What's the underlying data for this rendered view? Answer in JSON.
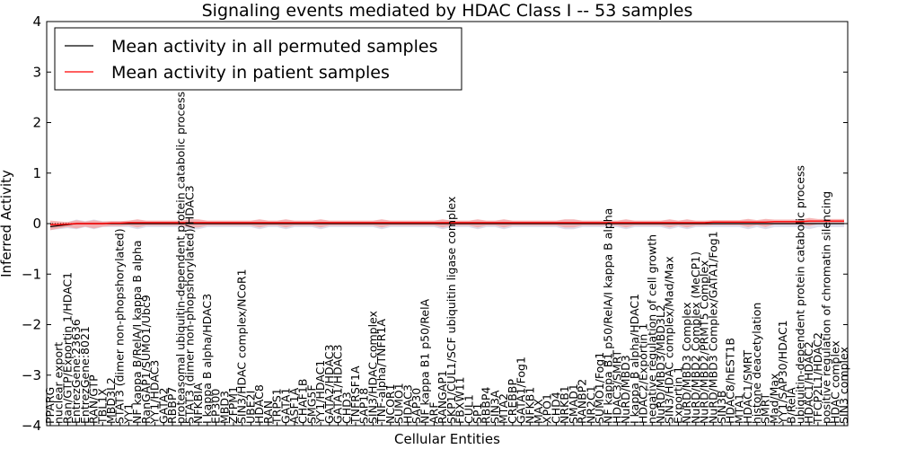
{
  "chart_data": {
    "type": "line",
    "title": "Signaling events mediated by HDAC Class I -- 53 samples",
    "xlabel": "Cellular Entities",
    "ylabel": "Inferred Activity",
    "ylim": [
      -4,
      4
    ],
    "yticks": [
      "−4",
      "−3",
      "−2",
      "−1",
      "0",
      "1",
      "2",
      "3",
      "4"
    ],
    "ytick_values": [
      -4,
      -3,
      -2,
      -1,
      0,
      1,
      2,
      3,
      4
    ],
    "legend": {
      "placement": "top-left",
      "entries": [
        {
          "label": "Mean activity in all permuted samples",
          "color": "#000000"
        },
        {
          "label": "Mean activity in patient samples",
          "color": "#ff0000"
        }
      ]
    },
    "colors": {
      "permuted": "#000000",
      "patient": "#ff0000",
      "patient_band": "#f4a0a0",
      "permuted_band": "#c8c8dc"
    },
    "categories": [
      "PPARG",
      "nuclear export",
      "Ran/GTP/Exportin 1/HDAC1",
      "EntrezGene:23636",
      "EntrezGene:8021",
      "RAN/GTP",
      "TBL1X",
      "MBD3L2",
      "STAT3 (dimer non-phopshorylated)",
      "YY1",
      "NF kappa B/RelA/I kappa B alpha",
      "RanGAP1/SUMO1/Ubc9",
      "YY1/HDAC3",
      "GATA2",
      "RBBP7",
      "proteasomal ubiquitin-dependent protein catabolic process",
      "STAT3 (dimer non-phopshorylated)/HDAC3",
      "NFKBIA",
      "I kappa B alpha/HDAC3",
      "EP300",
      "MBD3",
      "ZFPM1",
      "SIN3/HDAC complex/NCoR1",
      "UBE2I",
      "HDAC8",
      "RAN",
      "TRPS1",
      "GATA1",
      "ASF1A",
      "CHAF1B",
      "SMG5F",
      "YY1/HDAC1",
      "GATA2/HDAC3",
      "GATA1/HDAC3",
      "CHD3",
      "TNFRSF1A",
      "SAP18",
      "SIN3/HDAC complex",
      "TNF-alpha/TNFR1A",
      "NCOR1",
      "SUMO1",
      "HDAC3",
      "SAP30",
      "NF kappa B1 p50/RelA",
      "ARF",
      "RANGAP1",
      "SKP1/CUL1/SCF ubiquitin ligase complex",
      "FBXW11",
      "CUL1",
      "SP1",
      "RBBP4",
      "SIN3A",
      "MTA2",
      "CREBBP",
      "GATA1/Fog1",
      "NFKB1",
      "MAX",
      "XPO1",
      "CHD4",
      "NRKB1",
      "SMAD1",
      "RANBP2",
      "NR2C1",
      "SUMO1/Fog1",
      "NF kappa B1 p50/RelA/I kappa B alpha",
      "HDAC3/SMRT",
      "NuRD/MBD3",
      "I kappa B alpha/HDAC1",
      "HDAC2/Exportin 1",
      "negative regulation of cell growth",
      "NuRD/MBD3/MBD3L2",
      "SIN3/HDAC complex/Mad/Max",
      "Exportin 1",
      "NuRD/MBD3 Complex",
      "NuRD/MBD2 Complex (MeCP1)",
      "NuRD/MBD2/PRMT5 Complex",
      "NuRD/MBD3 Complex/GATA1/Fog1",
      "SIN3B",
      "HDAC8/hEST1B",
      "MTA1",
      "HDAC1/SMRT",
      "histone deacetylation",
      "SMRT",
      "Mad/Max",
      "YY1/SAP30/HDAC1",
      "B/RelA",
      "ubiquitin-dependent protein catabolic process",
      "HDAC1/HDAC2",
      "TFCP2L1/HDAC2",
      "positive regulation of chromatin silencing",
      "HDAC complex",
      "SIN3 complex"
    ],
    "series": [
      {
        "name": "Mean activity in all permuted samples",
        "values": [
          -0.06,
          -0.04,
          -0.02,
          0.0,
          0.0,
          0.0,
          0.0,
          0.0,
          0.0,
          0.0,
          0.0,
          0.0,
          0.0,
          0.0,
          0.0,
          0.0,
          0.0,
          0.0,
          0.0,
          0.0,
          0.0,
          0.0,
          0.0,
          0.0,
          0.0,
          0.0,
          0.0,
          0.0,
          0.0,
          0.0,
          0.0,
          0.0,
          0.0,
          0.0,
          0.0,
          0.0,
          0.0,
          0.0,
          0.0,
          0.0,
          0.0,
          0.0,
          0.0,
          0.0,
          0.0,
          0.0,
          0.0,
          0.0,
          0.0,
          0.0,
          0.0,
          0.0,
          0.0,
          0.0,
          0.0,
          0.0,
          0.0,
          0.0,
          0.0,
          0.0,
          0.0,
          0.0,
          0.0,
          0.0,
          0.0,
          0.0,
          0.0,
          0.0,
          0.0,
          0.0,
          0.0,
          0.0,
          0.0,
          0.0,
          0.0,
          0.0,
          0.0,
          0.0,
          0.0,
          0.0,
          0.0,
          0.0,
          0.0,
          0.0,
          0.0,
          0.0,
          0.0,
          0.0,
          0.0,
          0.0,
          0.0,
          0.0
        ]
      },
      {
        "name": "Mean activity in patient samples",
        "values": [
          -0.02,
          -0.02,
          -0.01,
          0.0,
          0.0,
          0.0,
          0.0,
          0.01,
          0.01,
          0.02,
          0.02,
          0.02,
          0.02,
          0.02,
          0.02,
          0.02,
          0.02,
          0.02,
          0.02,
          0.02,
          0.02,
          0.02,
          0.02,
          0.02,
          0.02,
          0.02,
          0.02,
          0.02,
          0.02,
          0.02,
          0.02,
          0.02,
          0.02,
          0.02,
          0.02,
          0.02,
          0.02,
          0.02,
          0.02,
          0.02,
          0.02,
          0.02,
          0.02,
          0.02,
          0.02,
          0.02,
          0.02,
          0.02,
          0.02,
          0.02,
          0.02,
          0.02,
          0.02,
          0.02,
          0.02,
          0.02,
          0.02,
          0.02,
          0.02,
          0.02,
          0.02,
          0.02,
          0.02,
          0.02,
          0.02,
          0.02,
          0.02,
          0.02,
          0.02,
          0.02,
          0.02,
          0.02,
          0.02,
          0.02,
          0.02,
          0.02,
          0.03,
          0.03,
          0.03,
          0.03,
          0.03,
          0.03,
          0.03,
          0.04,
          0.04,
          0.04,
          0.04,
          0.05,
          0.05,
          0.05,
          0.05,
          0.05
        ]
      }
    ]
  }
}
